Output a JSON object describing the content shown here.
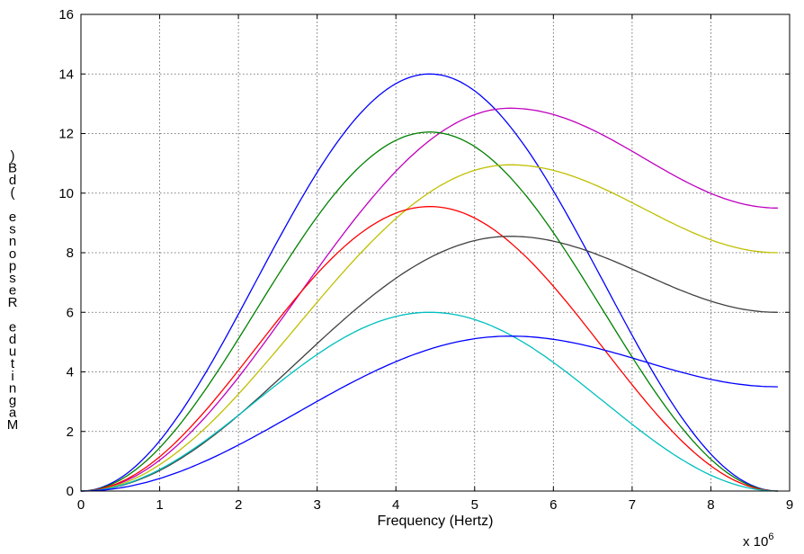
{
  "chart_data": {
    "type": "line",
    "title": "",
    "xlabel": "Frequency (Hertz)",
    "ylabel": "Magnitude Response (dB)",
    "ylabel_rendered": ")Bd( esnopseR edutingaM",
    "x_exponent_label": "x 10",
    "x_exponent_power": "6",
    "xlim": [
      0,
      9
    ],
    "ylim": [
      0,
      16
    ],
    "xticks": [
      0,
      1,
      2,
      3,
      4,
      5,
      6,
      7,
      8,
      9
    ],
    "yticks": [
      0,
      2,
      4,
      6,
      8,
      10,
      12,
      14,
      16
    ],
    "grid": true,
    "legend": "none",
    "x_end": 8.85,
    "series": [
      {
        "color": "#0000ff",
        "peak_x": 4.43,
        "peak_y": 14.0,
        "end_y": 0.0
      },
      {
        "color": "#bf00bf",
        "peak_x": 5.45,
        "peak_y": 12.85,
        "end_y": 9.5
      },
      {
        "color": "#008000",
        "peak_x": 4.43,
        "peak_y": 12.05,
        "end_y": 0.0
      },
      {
        "color": "#bfbf00",
        "peak_x": 5.45,
        "peak_y": 10.95,
        "end_y": 8.0
      },
      {
        "color": "#ff0000",
        "peak_x": 4.43,
        "peak_y": 9.55,
        "end_y": 0.0
      },
      {
        "color": "#404040",
        "peak_x": 5.45,
        "peak_y": 8.55,
        "end_y": 6.0
      },
      {
        "color": "#00bfbf",
        "peak_x": 4.43,
        "peak_y": 6.0,
        "end_y": 0.0
      },
      {
        "color": "#0000ff",
        "peak_x": 5.45,
        "peak_y": 5.2,
        "end_y": 3.5
      }
    ]
  }
}
